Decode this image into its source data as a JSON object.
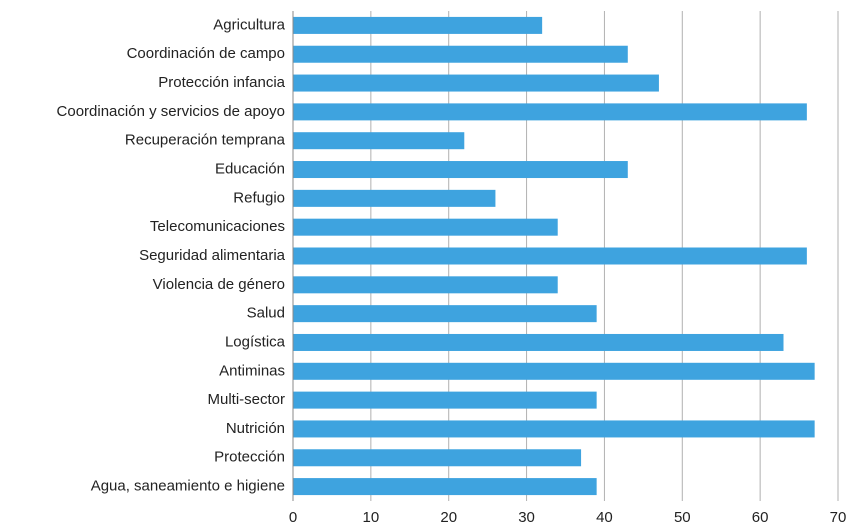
{
  "chart_data": {
    "type": "barh",
    "categories": [
      "Agricultura",
      "Coordinación de campo",
      "Protección infancia",
      "Coordinación y servicios de apoyo",
      "Recuperación temprana",
      "Educación",
      "Refugio",
      "Telecomunicaciones",
      "Seguridad alimentaria",
      "Violencia de género",
      "Salud",
      "Logística",
      "Antiminas",
      "Multi-sector",
      "Nutrición",
      "Protección",
      "Agua, saneamiento e higiene"
    ],
    "values": [
      32,
      43,
      47,
      66,
      22,
      43,
      26,
      34,
      66,
      34,
      39,
      63,
      67,
      39,
      67,
      37,
      39
    ],
    "color": "#3ea3df",
    "xlim": [
      0,
      70
    ],
    "xticks": [
      0,
      10,
      20,
      30,
      40,
      50,
      60,
      70
    ],
    "grid": true
  }
}
